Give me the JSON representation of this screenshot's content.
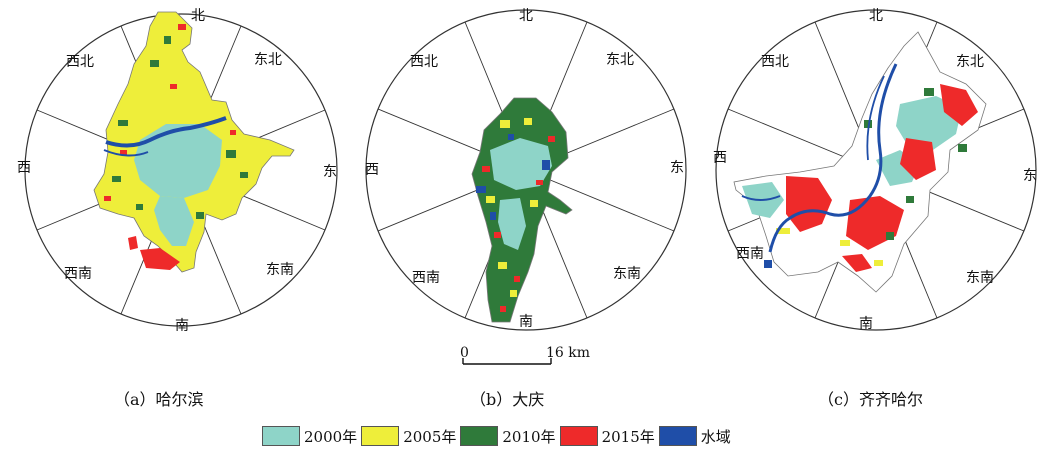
{
  "panels": [
    {
      "caption": "（a）哈尔滨",
      "directions": {
        "north": "北",
        "northeast": "东北",
        "east": "东",
        "southeast": "东南",
        "south": "南",
        "southwest": "西南",
        "west": "西",
        "northwest": "西北"
      }
    },
    {
      "caption": "（b）大庆",
      "directions": {
        "north": "北",
        "northeast": "东北",
        "east": "东",
        "southeast": "东南",
        "south": "南",
        "southwest": "西南",
        "west": "西",
        "northwest": "西北"
      }
    },
    {
      "caption": "（c）齐齐哈尔",
      "directions": {
        "north": "北",
        "northeast": "东北",
        "east": "东",
        "southeast": "东南",
        "south": "南",
        "southwest": "西南",
        "west": "西",
        "northwest": "西北"
      }
    }
  ],
  "scale_bar": {
    "start": "0",
    "end": "16 km"
  },
  "legend": [
    {
      "label": "2000年",
      "color": "#8ed4c8"
    },
    {
      "label": "2005年",
      "color": "#eeee3a"
    },
    {
      "label": "2010年",
      "color": "#2f7a3a"
    },
    {
      "label": "2015年",
      "color": "#ee2a2a"
    },
    {
      "label": "水域",
      "color": "#1f4ea8"
    }
  ]
}
